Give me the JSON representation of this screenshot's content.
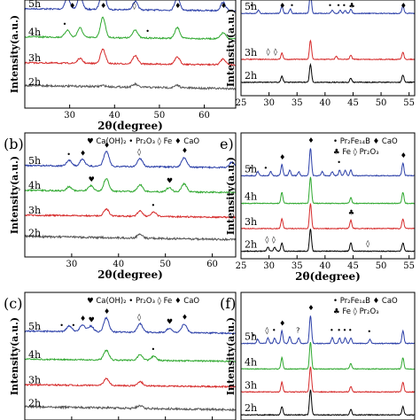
{
  "colors": {
    "5h": "#2b3fa8",
    "4h": "#2fa82f",
    "3h": "#d62a2a",
    "2h": "#000000",
    "2h_gray": "#555555",
    "frame": "#000000"
  },
  "chart_data": [
    {
      "panel": "a",
      "panel_label": "",
      "type": "line",
      "xlabel": "2θ(degree)",
      "ylabel": "Intensity(a.u.)",
      "xlim": [
        20,
        67
      ],
      "xticks": [
        30,
        40,
        50,
        60
      ],
      "series_labels": [
        "5h",
        "4h",
        "3h",
        "2h"
      ],
      "legend": [],
      "series_peaks": {
        "5h": [
          [
            29.5,
            0.45
          ],
          [
            32.3,
            0.55
          ],
          [
            37.4,
            0.95
          ],
          [
            44.6,
            0.35
          ],
          [
            54.0,
            0.55
          ],
          [
            64.2,
            0.35
          ]
        ],
        "4h": [
          [
            29.5,
            0.3
          ],
          [
            32.3,
            0.4
          ],
          [
            37.4,
            0.85
          ],
          [
            44.6,
            0.35
          ],
          [
            54.0,
            0.45
          ],
          [
            64.2,
            0.25
          ]
        ],
        "3h": [
          [
            32.3,
            0.2
          ],
          [
            37.4,
            0.6
          ],
          [
            44.6,
            0.35
          ],
          [
            54.0,
            0.3
          ],
          [
            64.2,
            0.25
          ]
        ],
        "2h": [
          [
            37.4,
            0.05
          ],
          [
            44.6,
            0.12
          ],
          [
            54.0,
            0.1
          ]
        ]
      },
      "markers": [
        {
          "series": "5h",
          "x": 30.5,
          "symbol": "♦"
        },
        {
          "series": "5h",
          "x": 37.4,
          "symbol": "♦"
        },
        {
          "series": "5h",
          "x": 44.6,
          "symbol": "◊"
        },
        {
          "series": "5h",
          "x": 54.0,
          "symbol": "♦"
        },
        {
          "series": "5h",
          "x": 64.2,
          "symbol": "♦"
        },
        {
          "series": "4h",
          "x": 29.0,
          "symbol": "•"
        },
        {
          "series": "4h",
          "x": 47.5,
          "symbol": "•"
        }
      ]
    },
    {
      "panel": "d",
      "panel_label": "",
      "type": "line",
      "xlabel": "",
      "ylabel": "Intensity(a.u.)",
      "xlim": [
        25,
        56
      ],
      "xticks": [
        25,
        30,
        35,
        40,
        45,
        50,
        55
      ],
      "series_labels": [
        "5h",
        "3h",
        "2h"
      ],
      "legend": [],
      "series_peaks": {
        "5h": [
          [
            28.1,
            0.15
          ],
          [
            32.3,
            0.35
          ],
          [
            33.8,
            0.2
          ],
          [
            37.4,
            1.0
          ],
          [
            41.3,
            0.15
          ],
          [
            42.7,
            0.15
          ],
          [
            43.6,
            0.15
          ],
          [
            44.6,
            0.2
          ],
          [
            53.9,
            0.35
          ]
        ],
        "4h": [
          [
            32.3,
            0.35
          ],
          [
            37.4,
            0.95
          ],
          [
            44.6,
            0.2
          ],
          [
            53.9,
            0.35
          ]
        ],
        "3h": [
          [
            32.3,
            0.3
          ],
          [
            37.4,
            0.9
          ],
          [
            42.0,
            0.15
          ],
          [
            44.6,
            0.2
          ],
          [
            53.9,
            0.35
          ]
        ],
        "2h": [
          [
            32.3,
            0.3
          ],
          [
            37.4,
            0.85
          ],
          [
            44.6,
            0.2
          ],
          [
            53.9,
            0.35
          ]
        ]
      },
      "markers": [
        {
          "series": "5h",
          "x": 27.0,
          "symbol": "•"
        },
        {
          "series": "5h",
          "x": 32.3,
          "symbol": "♦"
        },
        {
          "series": "5h",
          "x": 34.2,
          "symbol": "•"
        },
        {
          "series": "5h",
          "x": 41.0,
          "symbol": "•"
        },
        {
          "series": "5h",
          "x": 42.5,
          "symbol": "•"
        },
        {
          "series": "5h",
          "x": 43.5,
          "symbol": "•"
        },
        {
          "series": "5h",
          "x": 44.7,
          "symbol": "♣"
        },
        {
          "series": "5h",
          "x": 53.9,
          "symbol": "♦"
        },
        {
          "series": "3h",
          "x": 30.0,
          "symbol": "◊"
        },
        {
          "series": "3h",
          "x": 31.3,
          "symbol": "◊"
        }
      ]
    },
    {
      "panel": "b",
      "panel_label": "(b)",
      "type": "line",
      "xlabel": "2θ(degree)",
      "ylabel": "Intensity(a.u.)",
      "xlim": [
        20,
        65
      ],
      "xticks": [
        30,
        40,
        50,
        60
      ],
      "series_labels": [
        "5h",
        "4h",
        "3h",
        "2h"
      ],
      "legend": [
        "♥ Ca(OH)₂",
        "• Pr₂O₃",
        "◊ Fe",
        "♦ CaO"
      ],
      "series_peaks": {
        "5h": [
          [
            29.5,
            0.2
          ],
          [
            32.3,
            0.25
          ],
          [
            37.4,
            0.55
          ],
          [
            44.6,
            0.3
          ],
          [
            54.0,
            0.35
          ],
          [
            64.2,
            0.2
          ]
        ],
        "4h": [
          [
            29.5,
            0.15
          ],
          [
            34.1,
            0.2
          ],
          [
            37.4,
            0.45
          ],
          [
            44.6,
            0.25
          ],
          [
            50.8,
            0.15
          ],
          [
            54.0,
            0.3
          ]
        ],
        "3h": [
          [
            37.4,
            0.25
          ],
          [
            44.6,
            0.2
          ],
          [
            47.5,
            0.15
          ]
        ],
        "2h": [
          [
            44.6,
            0.15
          ]
        ]
      },
      "markers": [
        {
          "series": "5h",
          "x": 29.5,
          "symbol": "•"
        },
        {
          "series": "5h",
          "x": 32.3,
          "symbol": "♦"
        },
        {
          "series": "5h",
          "x": 37.4,
          "symbol": "♦"
        },
        {
          "series": "5h",
          "x": 44.6,
          "symbol": "◊"
        },
        {
          "series": "5h",
          "x": 54.0,
          "symbol": "♦"
        },
        {
          "series": "4h",
          "x": 34.1,
          "symbol": "♥"
        },
        {
          "series": "4h",
          "x": 50.8,
          "symbol": "♥"
        },
        {
          "series": "3h",
          "x": 47.5,
          "symbol": "•"
        }
      ]
    },
    {
      "panel": "e",
      "panel_label": "e)",
      "type": "line",
      "xlabel": "2θ(degree)",
      "ylabel": "Intensity(a.u.)",
      "xlim": [
        25,
        56
      ],
      "xticks": [
        25,
        30,
        35,
        40,
        45,
        50,
        55
      ],
      "series_labels": [
        "5h",
        "4h",
        "3h",
        "2h"
      ],
      "legend": [
        "• Pr₂Fe₁₄B",
        "♦ CaO",
        "♣ Fe",
        "◊ Pr₂O₃"
      ],
      "series_peaks": {
        "5h": [
          [
            28.0,
            0.15
          ],
          [
            30.3,
            0.15
          ],
          [
            32.3,
            0.4
          ],
          [
            33.7,
            0.2
          ],
          [
            35.3,
            0.15
          ],
          [
            37.4,
            1.0
          ],
          [
            39.5,
            0.15
          ],
          [
            41.3,
            0.15
          ],
          [
            42.6,
            0.2
          ],
          [
            43.6,
            0.2
          ],
          [
            44.6,
            0.2
          ],
          [
            53.9,
            0.45
          ]
        ],
        "4h": [
          [
            32.3,
            0.4
          ],
          [
            37.4,
            0.95
          ],
          [
            44.6,
            0.2
          ],
          [
            53.9,
            0.4
          ]
        ],
        "3h": [
          [
            32.3,
            0.35
          ],
          [
            37.4,
            0.9
          ],
          [
            44.6,
            0.3
          ],
          [
            53.9,
            0.35
          ]
        ],
        "2h": [
          [
            29.8,
            0.15
          ],
          [
            31.0,
            0.15
          ],
          [
            32.3,
            0.3
          ],
          [
            37.4,
            0.8
          ],
          [
            44.6,
            0.3
          ],
          [
            53.9,
            0.3
          ]
        ]
      },
      "markers": [
        {
          "series": "5h",
          "x": 26.8,
          "symbol": "•"
        },
        {
          "series": "5h",
          "x": 29.5,
          "symbol": "•"
        },
        {
          "series": "5h",
          "x": 32.3,
          "symbol": "♦"
        },
        {
          "series": "5h",
          "x": 37.4,
          "symbol": "♦"
        },
        {
          "series": "5h",
          "x": 42.6,
          "symbol": "•"
        },
        {
          "series": "5h",
          "x": 53.9,
          "symbol": "♦"
        },
        {
          "series": "3h",
          "x": 44.6,
          "symbol": "♣"
        },
        {
          "series": "2h",
          "x": 29.8,
          "symbol": "◊"
        },
        {
          "series": "2h",
          "x": 31.0,
          "symbol": "◊"
        },
        {
          "series": "2h",
          "x": 47.8,
          "symbol": "◊"
        }
      ]
    },
    {
      "panel": "c",
      "panel_label": "(c)",
      "type": "line",
      "xlabel": "",
      "ylabel": "Intensity(a.u.)",
      "xlim": [
        20,
        65
      ],
      "xticks": [
        30,
        40,
        50,
        60
      ],
      "series_labels": [
        "5h",
        "4h",
        "3h",
        "2h"
      ],
      "legend": [
        "♥ Ca(OH)₂",
        "• Pr₂O₃",
        "◊ Fe",
        "♦ CaO"
      ],
      "series_peaks": {
        "5h": [
          [
            29.5,
            0.2
          ],
          [
            32.3,
            0.25
          ],
          [
            34.1,
            0.2
          ],
          [
            37.4,
            0.5
          ],
          [
            44.6,
            0.3
          ],
          [
            50.8,
            0.15
          ],
          [
            54.0,
            0.3
          ]
        ],
        "4h": [
          [
            37.4,
            0.35
          ],
          [
            44.6,
            0.2
          ],
          [
            47.5,
            0.15
          ]
        ],
        "3h": [
          [
            37.4,
            0.25
          ],
          [
            44.6,
            0.15
          ]
        ],
        "2h": [
          [
            44.6,
            0.1
          ]
        ]
      },
      "markers": [
        {
          "series": "5h",
          "x": 28.0,
          "symbol": "•"
        },
        {
          "series": "5h",
          "x": 30.5,
          "symbol": "•"
        },
        {
          "series": "5h",
          "x": 32.3,
          "symbol": "♦"
        },
        {
          "series": "5h",
          "x": 34.1,
          "symbol": "♥"
        },
        {
          "series": "5h",
          "x": 37.4,
          "symbol": "♦"
        },
        {
          "series": "5h",
          "x": 44.6,
          "symbol": "◊"
        },
        {
          "series": "5h",
          "x": 50.8,
          "symbol": "♥"
        },
        {
          "series": "5h",
          "x": 54.0,
          "symbol": "♦"
        },
        {
          "series": "4h",
          "x": 47.5,
          "symbol": "•"
        }
      ]
    },
    {
      "panel": "f",
      "panel_label": "(f)",
      "type": "line",
      "xlabel": "",
      "ylabel": "Intensity(a.u.)",
      "xlim": [
        25,
        56
      ],
      "xticks": [],
      "series_labels": [
        "5h",
        "4h",
        "3h",
        "2h"
      ],
      "legend": [
        "• Pr₂Fe₁₄B",
        "♦ CaO",
        "♣ Fe",
        "◊ Pr₂O₃"
      ],
      "series_peaks": {
        "5h": [
          [
            28.0,
            0.15
          ],
          [
            29.8,
            0.2
          ],
          [
            31.0,
            0.2
          ],
          [
            32.3,
            0.45
          ],
          [
            33.7,
            0.25
          ],
          [
            35.3,
            0.2
          ],
          [
            37.4,
            1.0
          ],
          [
            41.3,
            0.2
          ],
          [
            42.6,
            0.2
          ],
          [
            43.6,
            0.2
          ],
          [
            44.6,
            0.2
          ],
          [
            48.0,
            0.15
          ],
          [
            53.9,
            0.45
          ]
        ],
        "4h": [
          [
            32.3,
            0.4
          ],
          [
            37.4,
            0.95
          ],
          [
            44.6,
            0.2
          ],
          [
            53.9,
            0.4
          ]
        ],
        "3h": [
          [
            32.3,
            0.35
          ],
          [
            37.4,
            0.9
          ],
          [
            44.6,
            0.2
          ],
          [
            53.9,
            0.35
          ]
        ],
        "2h": [
          [
            32.3,
            0.3
          ],
          [
            37.4,
            0.9
          ],
          [
            44.6,
            0.2
          ],
          [
            53.9,
            0.3
          ]
        ]
      },
      "markers": [
        {
          "series": "5h",
          "x": 27.3,
          "symbol": "•"
        },
        {
          "series": "5h",
          "x": 29.8,
          "symbol": "◊"
        },
        {
          "series": "5h",
          "x": 31.0,
          "symbol": "•"
        },
        {
          "series": "5h",
          "x": 32.3,
          "symbol": "♦"
        },
        {
          "series": "5h",
          "x": 35.3,
          "symbol": "?"
        },
        {
          "series": "5h",
          "x": 37.4,
          "symbol": "♦"
        },
        {
          "series": "5h",
          "x": 41.3,
          "symbol": "•"
        },
        {
          "series": "5h",
          "x": 42.6,
          "symbol": "•"
        },
        {
          "series": "5h",
          "x": 43.6,
          "symbol": "•"
        },
        {
          "series": "5h",
          "x": 44.6,
          "symbol": "•"
        },
        {
          "series": "5h",
          "x": 48.0,
          "symbol": "•"
        }
      ]
    }
  ]
}
